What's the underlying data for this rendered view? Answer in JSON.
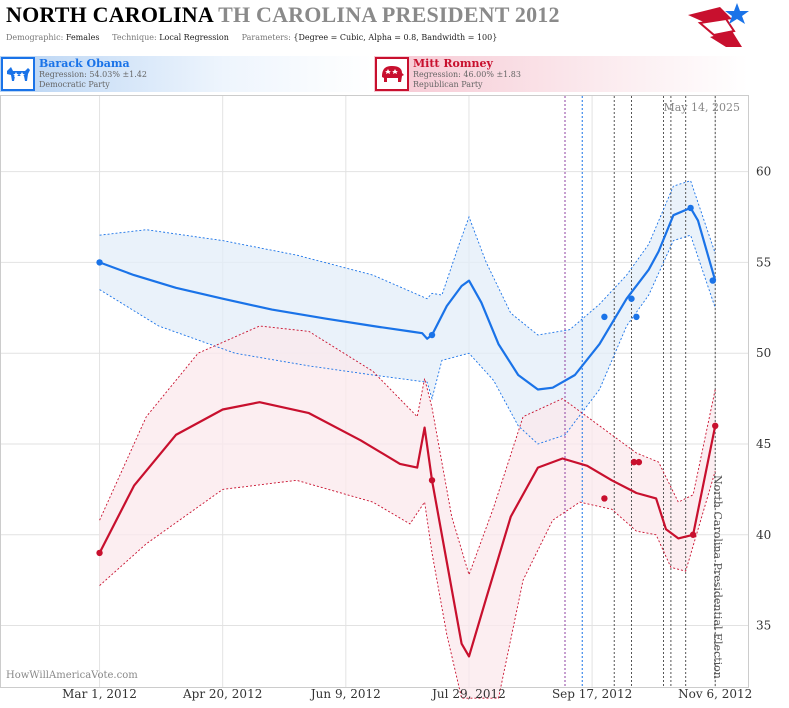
{
  "header": {
    "state": "NORTH CAROLINA",
    "race": "TH CAROLINA PRESIDENT 2012",
    "demographic_label": "Demographic:",
    "demographic_value": "Females",
    "technique_label": "Technique:",
    "technique_value": "Local Regression",
    "parameters_label": "Parameters:",
    "parameters_value": "{Degree = Cubic, Alpha = 0.8, Bandwidth = 100}"
  },
  "candidates": {
    "dem": {
      "name": "Barack Obama",
      "regression": "Regression: 54.03% ±1.42",
      "party": "Democratic Party",
      "icon": "donkey-icon",
      "color": "#1a73e8"
    },
    "rep": {
      "name": "Mitt Romney",
      "regression": "Regression: 46.00% ±1.83",
      "party": "Republican Party",
      "icon": "elephant-icon",
      "color": "#c8102e"
    }
  },
  "chart_data": {
    "type": "line",
    "title": "NORTH CAROLINA TH CAROLINA PRESIDENT 2012",
    "date_label": "May 14, 2025",
    "vertical_label": "North Carolina Presidential Election",
    "watermark": "HowWillAmericaVote.com",
    "x_ticks": [
      "2012-03-01",
      "2012-04-20",
      "2012-06-09",
      "2012-07-29",
      "2012-09-17",
      "2012-11-06"
    ],
    "x_tick_labels": [
      "Mar 1, 2012",
      "Apr 20, 2012",
      "Jun 9, 2012",
      "Jul 29, 2012",
      "Sep 17, 2012",
      "Nov 6, 2012"
    ],
    "xlim": [
      "2012-02-18",
      "2012-11-12"
    ],
    "ylim": [
      32,
      64
    ],
    "y_ticks": [
      35,
      40,
      45,
      50,
      55,
      60
    ],
    "event_lines": [
      {
        "date": "2012-09-06",
        "color": "#8e3fa0"
      },
      {
        "date": "2012-09-13",
        "color": "#1a73e8"
      },
      {
        "date": "2012-09-26",
        "color": "#555555"
      },
      {
        "date": "2012-10-03",
        "color": "#555555"
      },
      {
        "date": "2012-10-16",
        "color": "#555555"
      },
      {
        "date": "2012-10-19",
        "color": "#555555"
      },
      {
        "date": "2012-10-25",
        "color": "#555555"
      },
      {
        "date": "2012-11-06",
        "color": "#555555"
      }
    ],
    "series": [
      {
        "name": "Barack Obama",
        "color": "#1a73e8",
        "band_color": "#e3edf8",
        "points": [
          {
            "x": "2012-03-01",
            "y": 55
          },
          {
            "x": "2012-07-14",
            "y": 51
          },
          {
            "x": "2012-09-22",
            "y": 52
          },
          {
            "x": "2012-10-03",
            "y": 53
          },
          {
            "x": "2012-10-05",
            "y": 52
          },
          {
            "x": "2012-10-27",
            "y": 58
          },
          {
            "x": "2012-11-05",
            "y": 54
          }
        ],
        "line": [
          [
            "2012-03-01",
            55.0
          ],
          [
            "2012-03-15",
            54.3
          ],
          [
            "2012-04-01",
            53.6
          ],
          [
            "2012-04-20",
            53.0
          ],
          [
            "2012-05-10",
            52.4
          ],
          [
            "2012-06-01",
            51.9
          ],
          [
            "2012-06-20",
            51.5
          ],
          [
            "2012-07-05",
            51.2
          ],
          [
            "2012-07-10",
            51.1
          ],
          [
            "2012-07-12",
            50.8
          ],
          [
            "2012-07-14",
            51.0
          ],
          [
            "2012-07-20",
            52.6
          ],
          [
            "2012-07-26",
            53.7
          ],
          [
            "2012-07-29",
            54.0
          ],
          [
            "2012-08-03",
            52.8
          ],
          [
            "2012-08-10",
            50.5
          ],
          [
            "2012-08-18",
            48.8
          ],
          [
            "2012-08-26",
            48.0
          ],
          [
            "2012-09-01",
            48.1
          ],
          [
            "2012-09-10",
            48.8
          ],
          [
            "2012-09-20",
            50.5
          ],
          [
            "2012-10-01",
            53.0
          ],
          [
            "2012-10-10",
            54.6
          ],
          [
            "2012-10-14",
            55.6
          ],
          [
            "2012-10-20",
            57.6
          ],
          [
            "2012-10-27",
            58.0
          ],
          [
            "2012-10-30",
            57.3
          ],
          [
            "2012-11-06",
            54.0
          ]
        ],
        "upper": [
          [
            "2012-03-01",
            56.5
          ],
          [
            "2012-03-20",
            56.8
          ],
          [
            "2012-04-20",
            56.2
          ],
          [
            "2012-05-20",
            55.4
          ],
          [
            "2012-06-20",
            54.3
          ],
          [
            "2012-07-12",
            53.0
          ],
          [
            "2012-07-14",
            53.3
          ],
          [
            "2012-07-18",
            53.2
          ],
          [
            "2012-07-25",
            56.0
          ],
          [
            "2012-07-29",
            57.5
          ],
          [
            "2012-08-05",
            55.0
          ],
          [
            "2012-08-15",
            52.2
          ],
          [
            "2012-08-26",
            51.0
          ],
          [
            "2012-09-08",
            51.3
          ],
          [
            "2012-09-20",
            52.7
          ],
          [
            "2012-10-01",
            54.3
          ],
          [
            "2012-10-10",
            56.0
          ],
          [
            "2012-10-20",
            59.2
          ],
          [
            "2012-10-27",
            59.5
          ],
          [
            "2012-11-06",
            55.5
          ]
        ],
        "lower": [
          [
            "2012-03-01",
            53.5
          ],
          [
            "2012-03-25",
            51.5
          ],
          [
            "2012-04-25",
            50.0
          ],
          [
            "2012-05-25",
            49.3
          ],
          [
            "2012-06-20",
            48.8
          ],
          [
            "2012-07-12",
            48.4
          ],
          [
            "2012-07-14",
            47.5
          ],
          [
            "2012-07-18",
            49.6
          ],
          [
            "2012-07-29",
            50.0
          ],
          [
            "2012-08-08",
            48.5
          ],
          [
            "2012-08-18",
            46.0
          ],
          [
            "2012-08-26",
            45.0
          ],
          [
            "2012-09-06",
            45.5
          ],
          [
            "2012-09-20",
            48.0
          ],
          [
            "2012-10-01",
            51.5
          ],
          [
            "2012-10-10",
            53.2
          ],
          [
            "2012-10-20",
            56.2
          ],
          [
            "2012-10-27",
            56.5
          ],
          [
            "2012-11-06",
            52.5
          ]
        ]
      },
      {
        "name": "Mitt Romney",
        "color": "#c8102e",
        "band_color": "#fbe8ec",
        "points": [
          {
            "x": "2012-03-01",
            "y": 39
          },
          {
            "x": "2012-07-14",
            "y": 43
          },
          {
            "x": "2012-09-22",
            "y": 42
          },
          {
            "x": "2012-10-04",
            "y": 44
          },
          {
            "x": "2012-10-06",
            "y": 44
          },
          {
            "x": "2012-10-28",
            "y": 40
          },
          {
            "x": "2012-11-06",
            "y": 46
          }
        ],
        "line": [
          [
            "2012-03-01",
            39.0
          ],
          [
            "2012-03-15",
            42.7
          ],
          [
            "2012-04-01",
            45.5
          ],
          [
            "2012-04-20",
            46.9
          ],
          [
            "2012-05-05",
            47.3
          ],
          [
            "2012-05-25",
            46.7
          ],
          [
            "2012-06-15",
            45.2
          ],
          [
            "2012-07-01",
            43.9
          ],
          [
            "2012-07-08",
            43.7
          ],
          [
            "2012-07-11",
            45.9
          ],
          [
            "2012-07-14",
            43.0
          ],
          [
            "2012-07-20",
            38.5
          ],
          [
            "2012-07-26",
            34.0
          ],
          [
            "2012-07-29",
            33.3
          ],
          [
            "2012-08-05",
            36.5
          ],
          [
            "2012-08-15",
            41.0
          ],
          [
            "2012-08-26",
            43.7
          ],
          [
            "2012-09-05",
            44.2
          ],
          [
            "2012-09-15",
            43.8
          ],
          [
            "2012-09-25",
            43.0
          ],
          [
            "2012-10-05",
            42.3
          ],
          [
            "2012-10-13",
            42.0
          ],
          [
            "2012-10-17",
            40.3
          ],
          [
            "2012-10-22",
            39.8
          ],
          [
            "2012-10-28",
            40.0
          ],
          [
            "2012-11-06",
            46.0
          ]
        ],
        "upper": [
          [
            "2012-03-01",
            40.8
          ],
          [
            "2012-03-20",
            46.5
          ],
          [
            "2012-04-10",
            50.0
          ],
          [
            "2012-05-05",
            51.5
          ],
          [
            "2012-05-25",
            51.2
          ],
          [
            "2012-06-20",
            49.0
          ],
          [
            "2012-07-08",
            46.5
          ],
          [
            "2012-07-11",
            48.6
          ],
          [
            "2012-07-14",
            47.0
          ],
          [
            "2012-07-22",
            41.0
          ],
          [
            "2012-07-29",
            37.8
          ],
          [
            "2012-08-08",
            41.5
          ],
          [
            "2012-08-20",
            46.5
          ],
          [
            "2012-09-05",
            47.5
          ],
          [
            "2012-09-20",
            46.0
          ],
          [
            "2012-10-05",
            44.5
          ],
          [
            "2012-10-14",
            44.0
          ],
          [
            "2012-10-22",
            41.8
          ],
          [
            "2012-10-28",
            42.2
          ],
          [
            "2012-11-06",
            48.0
          ]
        ],
        "lower": [
          [
            "2012-03-01",
            37.2
          ],
          [
            "2012-03-20",
            39.5
          ],
          [
            "2012-04-20",
            42.5
          ],
          [
            "2012-05-20",
            43.0
          ],
          [
            "2012-06-20",
            41.8
          ],
          [
            "2012-07-05",
            40.6
          ],
          [
            "2012-07-11",
            41.8
          ],
          [
            "2012-07-14",
            39.0
          ],
          [
            "2012-07-20",
            34.5
          ],
          [
            "2012-07-26",
            31.0
          ],
          [
            "2012-08-10",
            31.0
          ],
          [
            "2012-08-20",
            37.5
          ],
          [
            "2012-09-01",
            40.8
          ],
          [
            "2012-09-12",
            41.8
          ],
          [
            "2012-09-25",
            41.4
          ],
          [
            "2012-10-05",
            40.2
          ],
          [
            "2012-10-13",
            40.0
          ],
          [
            "2012-10-19",
            38.2
          ],
          [
            "2012-10-25",
            38.0
          ],
          [
            "2012-11-06",
            43.5
          ]
        ]
      }
    ]
  }
}
